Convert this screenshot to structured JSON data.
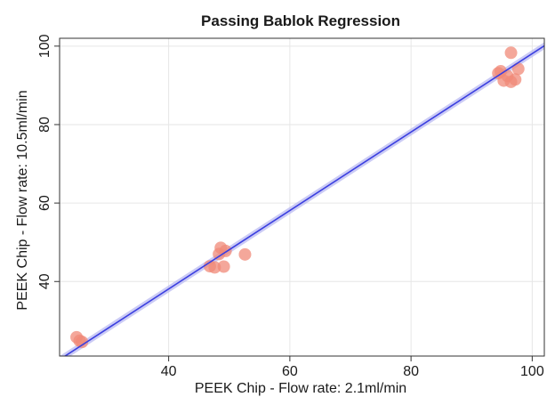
{
  "chart_data": {
    "type": "scatter",
    "title": "Passing Bablok Regression",
    "xlabel": "PEEK Chip - Flow rate: 2.1ml/min",
    "ylabel": "PEEK Chip - Flow rate: 10.5ml/min",
    "xlim": [
      22,
      102
    ],
    "ylim": [
      21,
      102
    ],
    "xticks": [
      40,
      60,
      80,
      100
    ],
    "yticks": [
      40,
      60,
      80,
      100
    ],
    "grid": true,
    "legend": "none",
    "series": [
      {
        "points": [
          {
            "x": 24.8,
            "y": 25.8
          },
          {
            "x": 25.3,
            "y": 24.9
          },
          {
            "x": 25.7,
            "y": 24.6
          },
          {
            "x": 46.8,
            "y": 43.9
          },
          {
            "x": 47.6,
            "y": 43.6
          },
          {
            "x": 48.3,
            "y": 47.0
          },
          {
            "x": 48.6,
            "y": 48.6
          },
          {
            "x": 49.1,
            "y": 43.8
          },
          {
            "x": 49.4,
            "y": 47.8
          },
          {
            "x": 52.6,
            "y": 46.9
          },
          {
            "x": 94.4,
            "y": 93.1
          },
          {
            "x": 94.8,
            "y": 93.6
          },
          {
            "x": 95.3,
            "y": 91.2
          },
          {
            "x": 95.9,
            "y": 92.4
          },
          {
            "x": 96.5,
            "y": 90.9
          },
          {
            "x": 96.5,
            "y": 98.3
          },
          {
            "x": 97.2,
            "y": 91.5
          },
          {
            "x": 97.7,
            "y": 94.2
          }
        ]
      }
    ],
    "regression": {
      "intercept": -1.9,
      "slope": 1.0
    },
    "confidence_band": {
      "intercept_low": -2.8,
      "intercept_high": -1.0
    },
    "colors": {
      "points": "#f08a78",
      "line": "#3b3fe0",
      "band": "#b9b9f2",
      "grid": "#e6e6e6",
      "frame": "#333333"
    }
  }
}
